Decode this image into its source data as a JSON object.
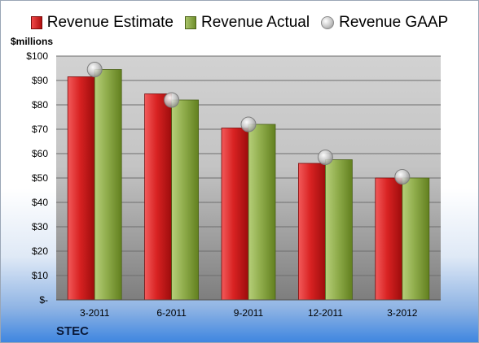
{
  "legend": {
    "estimate": "Revenue Estimate",
    "actual": "Revenue Actual",
    "gaap": "Revenue GAAP"
  },
  "unit_label": "$millions",
  "company": "STEC",
  "colors": {
    "estimate": "#d42020",
    "actual": "#8aa846",
    "gaap": "#c0c0c0"
  },
  "chart_data": {
    "type": "bar",
    "categories": [
      "3-2011",
      "6-2011",
      "9-2011",
      "12-2011",
      "3-2012"
    ],
    "series": [
      {
        "name": "Revenue Estimate",
        "values": [
          91.5,
          84.5,
          70.5,
          56,
          50
        ]
      },
      {
        "name": "Revenue Actual",
        "values": [
          94.5,
          82,
          72,
          57.5,
          50
        ]
      },
      {
        "name": "Revenue GAAP",
        "values": [
          94.5,
          82,
          72,
          58.5,
          50.5
        ],
        "style": "marker"
      }
    ],
    "ylabel": "$millions",
    "ylim": [
      0,
      100
    ],
    "yticks": [
      "$-",
      "$10",
      "$20",
      "$30",
      "$40",
      "$50",
      "$60",
      "$70",
      "$80",
      "$90",
      "$100"
    ],
    "grid": true,
    "legend_position": "top"
  }
}
